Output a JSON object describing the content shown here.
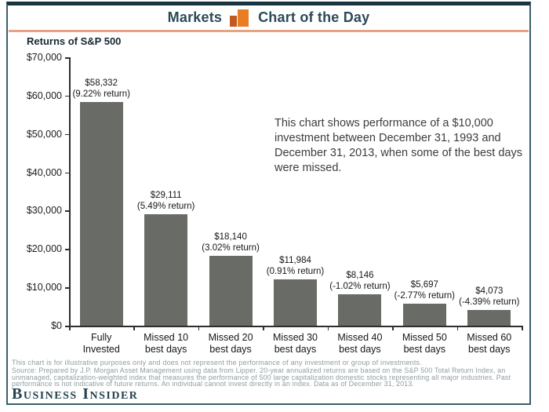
{
  "header": {
    "markets_label": "Markets",
    "chart_of_day_label": "Chart of the Day",
    "icon": "bar-chart-icon"
  },
  "chart_data": {
    "type": "bar",
    "title": "Returns of S&P 500",
    "categories": [
      [
        "Fully",
        "Invested"
      ],
      [
        "Missed 10",
        "best days"
      ],
      [
        "Missed 20",
        "best days"
      ],
      [
        "Missed 30",
        "best days"
      ],
      [
        "Missed 40",
        "best days"
      ],
      [
        "Missed 50",
        "best days"
      ],
      [
        "Missed 60",
        "best days"
      ]
    ],
    "values": [
      58332,
      29111,
      18140,
      11984,
      8146,
      5697,
      4073
    ],
    "bar_value_labels": [
      "$58,332",
      "$29,111",
      "$18,140",
      "$11,984",
      "$8,146",
      "$5,697",
      "$4,073"
    ],
    "bar_return_labels": [
      "(9.22% return)",
      "(5.49% return)",
      "(3.02% return)",
      "(0.91% return)",
      "(-1.02% return)",
      "(-2.77% return)",
      "(-4.39% return)"
    ],
    "y_ticks": [
      "$0",
      "$10,000",
      "$20,000",
      "$30,000",
      "$40,000",
      "$50,000",
      "$60,000",
      "$70,000"
    ],
    "ylim": [
      0,
      70000
    ],
    "y_tick_step": 10000,
    "grid": false,
    "legend": false,
    "annotation": "This chart shows performance of a $10,000 investment between December 31, 1993 and December 31, 2013, when some of the best days were missed."
  },
  "footer": {
    "disclaimer": "This chart is for illustrative purposes only and does not represent the performance of any investment or group of investments.",
    "source": "Source: Prepared by J.P. Morgan Asset Management using data from Lipper. 20-year annualized returns are based on the S&P 500 Total Return Index, an unmanaged, capitalization-weighted index that measures the performance of 500 large capitalization domestic stocks representing all major industries. Past performance is not indicative of future returns. An individual cannot invest directly in an index. Data as of December 31, 2013."
  },
  "logo": {
    "text": "Business Insider"
  },
  "colors": {
    "accent_orange": "#e87d24",
    "accent_orange_dark": "#c05a1e",
    "header_underline": "#e9a284",
    "navy_text": "#2b4a58",
    "frame_border": "#3a5f6b",
    "frame_top": "#173440",
    "bar_fill": "#686b66",
    "footer_gray": "#8f9da0"
  }
}
